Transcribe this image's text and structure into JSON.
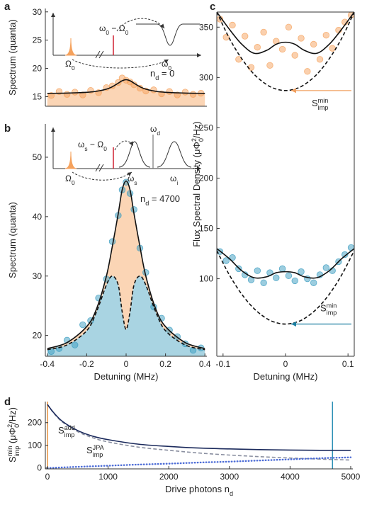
{
  "chart_data": [
    {
      "type": "line",
      "panel": "a",
      "ylabel": "Spectrum (quanta)",
      "xlim": [
        -0.41,
        0.41
      ],
      "ylim": [
        13.3,
        30.6
      ],
      "yticks": [
        15,
        20,
        25,
        30
      ],
      "inset_labels": [
        [
          "ω",
          {
            "sub": "0"
          },
          " − Ω",
          {
            "sub": "0"
          }
        ],
        [
          "Ω",
          {
            "sub": "0"
          }
        ],
        [
          "ω",
          {
            "sub": "0"
          }
        ]
      ],
      "annotations": [
        {
          "parts": [
            "n",
            {
              "sub": "d"
            },
            " = 0"
          ],
          "color": "#f0a060"
        }
      ],
      "series": [
        {
          "color": "#f5a25d",
          "marker": true,
          "x": [
            -0.38,
            -0.34,
            -0.3,
            -0.26,
            -0.22,
            -0.18,
            -0.14,
            -0.1,
            -0.07,
            -0.04,
            -0.02,
            0,
            0.02,
            0.04,
            0.07,
            0.1,
            0.14,
            0.18,
            0.22,
            0.26,
            0.3,
            0.34,
            0.38
          ],
          "values": [
            15.2,
            15.9,
            15.4,
            15.8,
            15.3,
            16.1,
            15.7,
            16.6,
            16.9,
            17.5,
            18.3,
            17.9,
            17.6,
            17.1,
            16.5,
            16.0,
            16.2,
            15.5,
            15.9,
            15.3,
            15.8,
            15.4,
            15.6
          ]
        },
        {
          "color": "#111111",
          "style": "solid",
          "fill": "#fbd5b5",
          "x": [
            -0.4,
            -0.3,
            -0.2,
            -0.15,
            -0.1,
            -0.07,
            -0.04,
            -0.02,
            0,
            0.02,
            0.04,
            0.07,
            0.1,
            0.15,
            0.2,
            0.3,
            0.4
          ],
          "values": [
            15.58,
            15.63,
            15.77,
            15.95,
            16.32,
            16.75,
            17.38,
            17.81,
            18,
            17.81,
            17.38,
            16.75,
            16.32,
            15.95,
            15.77,
            15.63,
            15.58
          ]
        }
      ]
    },
    {
      "type": "line",
      "panel": "b",
      "ylabel": "Spectrum (quanta)",
      "xlabel": "Detuning (MHz)",
      "xlim": [
        -0.41,
        0.41
      ],
      "xticks": [
        -0.4,
        -0.2,
        0,
        0.2,
        0.4
      ],
      "ylim": [
        16.5,
        55.6
      ],
      "yticks": [
        20,
        30,
        40,
        50
      ],
      "inset_labels": [
        [
          "ω",
          {
            "sub": "s"
          },
          " − Ω",
          {
            "sub": "0"
          }
        ],
        [
          "ω",
          {
            "sub": "d"
          }
        ],
        [
          "Ω",
          {
            "sub": "0"
          }
        ],
        [
          "ω",
          {
            "sub": "s"
          }
        ],
        [
          "ω",
          {
            "sub": "i"
          }
        ]
      ],
      "annotations": [
        {
          "parts": [
            "n",
            {
              "sub": "d"
            },
            " = 4700"
          ],
          "color": "#1a7ea0"
        }
      ],
      "series": [
        {
          "color": "#111111",
          "style": "solid",
          "fill": "#fbd5b5",
          "x": [
            -0.4,
            -0.3,
            -0.2,
            -0.15,
            -0.1,
            -0.07,
            -0.04,
            -0.02,
            0,
            0.02,
            0.04,
            0.07,
            0.1,
            0.15,
            0.2,
            0.3,
            0.4
          ],
          "values": [
            17.8,
            18.8,
            21.5,
            24.5,
            30,
            35,
            40.5,
            44.5,
            46,
            44.5,
            40.5,
            35,
            30,
            24.5,
            21.5,
            18.8,
            17.8
          ]
        },
        {
          "color": "#111111",
          "style": "dashed",
          "fill": "#a9d4e2",
          "x": [
            -0.4,
            -0.3,
            -0.2,
            -0.15,
            -0.1,
            -0.07,
            -0.04,
            -0.02,
            0,
            0.02,
            0.04,
            0.07,
            0.1,
            0.15,
            0.2,
            0.3,
            0.4
          ],
          "values": [
            17.6,
            18.4,
            20.8,
            24,
            28.5,
            30,
            28.5,
            24,
            21,
            24,
            28.5,
            30,
            28.5,
            24,
            20.8,
            18.4,
            17.6
          ]
        },
        {
          "color": "#3a9cc0",
          "marker": true,
          "x": [
            -0.38,
            -0.34,
            -0.3,
            -0.26,
            -0.22,
            -0.18,
            -0.14,
            -0.1,
            -0.07,
            -0.04,
            -0.02,
            0,
            0.02,
            0.04,
            0.07,
            0.1,
            0.14,
            0.18,
            0.22,
            0.26,
            0.3,
            0.34,
            0.38
          ],
          "values": [
            17.3,
            17.8,
            19.2,
            18.4,
            21.8,
            22.5,
            26.3,
            29.5,
            35.8,
            40.2,
            44.5,
            45.8,
            43.9,
            41.2,
            34.7,
            30.6,
            24.8,
            22.9,
            20.9,
            19.8,
            18.6,
            17.5,
            17.9
          ]
        }
      ]
    },
    {
      "type": "line",
      "panel": "c",
      "box": true,
      "xlabel": "Detuning (MHz)",
      "ylabel": [
        "Flux Spectral Density (μΦ",
        {
          "sub": "0"
        },
        {
          "sup": "2"
        },
        "/Hz)"
      ],
      "xlim": [
        -0.11,
        0.11
      ],
      "xticks": [
        -0.1,
        0,
        0.1
      ],
      "ylim": [
        23,
        365
      ],
      "yticks": [
        100,
        150,
        200,
        250,
        300,
        350
      ],
      "annotations": [
        {
          "parts": [
            "S",
            {
              "sub": "imp"
            },
            {
              "sup": "min"
            }
          ],
          "color": "#f0a060"
        },
        {
          "parts": [
            "S",
            {
              "sub": "imp"
            },
            {
              "sup": "min"
            }
          ],
          "color": "#1a7ea0"
        }
      ],
      "series": [
        {
          "color": "#f5a25d",
          "marker": true,
          "x": [
            -0.105,
            -0.095,
            -0.085,
            -0.075,
            -0.065,
            -0.055,
            -0.045,
            -0.035,
            -0.025,
            -0.015,
            -0.005,
            0.005,
            0.015,
            0.025,
            0.035,
            0.045,
            0.055,
            0.065,
            0.075,
            0.085,
            0.095,
            0.105
          ],
          "values": [
            358,
            340,
            352,
            318,
            341,
            310,
            330,
            345,
            312,
            336,
            328,
            350,
            322,
            339,
            306,
            333,
            318,
            342,
            329,
            347,
            355,
            362
          ]
        },
        {
          "color": "#3a9cc0",
          "marker": true,
          "x": [
            -0.105,
            -0.095,
            -0.085,
            -0.075,
            -0.065,
            -0.055,
            -0.045,
            -0.035,
            -0.025,
            -0.015,
            -0.005,
            0.005,
            0.015,
            0.025,
            0.035,
            0.045,
            0.055,
            0.065,
            0.075,
            0.085,
            0.095,
            0.105
          ],
          "values": [
            127,
            118,
            121,
            110,
            104,
            99,
            108,
            96,
            106,
            101,
            110,
            103,
            98,
            107,
            100,
            96,
            104,
            111,
            108,
            117,
            124,
            131
          ]
        },
        {
          "color": "#111111",
          "style": "solid",
          "x": [
            -0.11,
            -0.09,
            -0.07,
            -0.05,
            -0.03,
            -0.015,
            0,
            0.015,
            0.03,
            0.05,
            0.07,
            0.09,
            0.11
          ],
          "values": [
            365,
            348,
            333,
            324,
            327,
            333,
            335,
            333,
            327,
            324,
            333,
            348,
            365
          ]
        },
        {
          "color": "#111111",
          "style": "dashed",
          "x": [
            -0.11,
            -0.09,
            -0.07,
            -0.05,
            -0.03,
            -0.015,
            0,
            0.015,
            0.03,
            0.05,
            0.07,
            0.09,
            0.11
          ],
          "values": [
            365,
            339,
            318.6,
            303,
            292.8,
            288.5,
            287,
            288.5,
            292.8,
            303,
            318.6,
            339,
            365
          ]
        },
        {
          "color": "#111111",
          "style": "solid",
          "x": [
            -0.11,
            -0.09,
            -0.07,
            -0.05,
            -0.03,
            -0.015,
            0,
            0.015,
            0.03,
            0.05,
            0.07,
            0.09,
            0.11
          ],
          "values": [
            130,
            120,
            108,
            101,
            102,
            106,
            107,
            106,
            102,
            101,
            108,
            120,
            130
          ]
        },
        {
          "color": "#111111",
          "style": "dashed",
          "x": [
            -0.11,
            -0.09,
            -0.07,
            -0.05,
            -0.03,
            -0.015,
            0,
            0.015,
            0.03,
            0.05,
            0.07,
            0.09,
            0.11
          ],
          "values": [
            128,
            103.9,
            84.6,
            70.1,
            60.4,
            56.4,
            55,
            56.4,
            60.4,
            70.1,
            84.6,
            103.9,
            128
          ]
        }
      ]
    },
    {
      "type": "line",
      "panel": "d",
      "xlabel": [
        "Drive photons n",
        {
          "sub": "d"
        }
      ],
      "ylabel": [
        "S",
        {
          "sub": "imp"
        },
        {
          "sup": "min"
        },
        " (μΦ",
        {
          "sub": "0"
        },
        {
          "sup": "2"
        },
        "/Hz)"
      ],
      "xlim": [
        -35,
        5035
      ],
      "xticks": [
        0,
        1000,
        2000,
        3000,
        4000,
        5000
      ],
      "ylim": [
        -4,
        293
      ],
      "yticks": [
        0,
        100,
        200
      ],
      "vlines": [
        {
          "value": 0,
          "color": "#e8903c"
        },
        {
          "value": 4700,
          "color": "#2b8fb5"
        }
      ],
      "annotations": [
        {
          "parts": [
            "S",
            {
              "sub": "imp"
            },
            {
              "sup": "add"
            }
          ],
          "color": "#8a8fa0"
        },
        {
          "parts": [
            "S",
            {
              "sub": "imp"
            },
            {
              "sup": "JPA"
            }
          ],
          "color": "#4b6bd6"
        }
      ],
      "series": [
        {
          "color": "#8a8fa0",
          "style": "dashed",
          "x": [
            0,
            100,
            250,
            500,
            750,
            1000,
            1500,
            2000,
            2500,
            3000,
            3500,
            4000,
            4500,
            5000
          ],
          "values": [
            280,
            243,
            202,
            160,
            133,
            115,
            92,
            78,
            66,
            57,
            50,
            44,
            39,
            35
          ]
        },
        {
          "color": "#4b6bd6",
          "style": "dotted",
          "x": [
            0,
            100,
            250,
            500,
            750,
            1000,
            1500,
            2000,
            2500,
            3000,
            3500,
            4000,
            4500,
            5000
          ],
          "values": [
            0,
            1,
            2.5,
            5,
            7.5,
            10,
            15,
            19,
            24,
            28,
            33,
            38,
            43,
            47
          ]
        },
        {
          "color": "#1b2a5c",
          "style": "solid",
          "x": [
            0,
            100,
            250,
            500,
            750,
            1000,
            1500,
            2000,
            2500,
            3000,
            3500,
            4000,
            4500,
            5000
          ],
          "values": [
            280,
            245,
            205,
            165,
            140,
            125,
            105,
            95,
            88,
            84,
            81,
            79,
            78,
            78
          ]
        }
      ]
    }
  ]
}
